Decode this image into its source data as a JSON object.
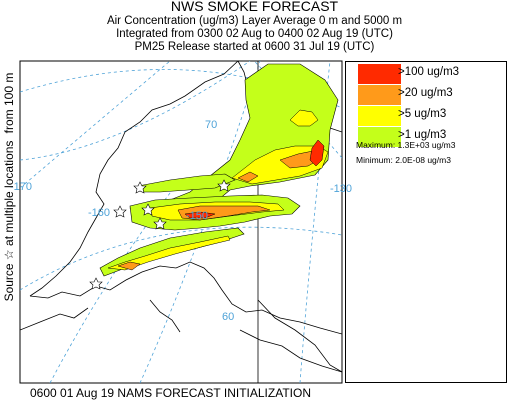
{
  "title": "NWS SMOKE FORECAST",
  "subtitle_lines": [
    "Air Concentration (ug/m3) Layer Average    0 m and  5000 m",
    "Integrated from 0300 02 Aug to 0400 02 Aug 19 (UTC)",
    "PM25 Release started at 0600 31 Jul 19 (UTC)"
  ],
  "side_label": "Source ☆ at multiple locations",
  "side_label_top": "from   100 m",
  "legend": [
    {
      "label": ">100 ug/m3",
      "color": "#ff2a00"
    },
    {
      "label": ">20 ug/m3",
      "color": "#ff9a1a"
    },
    {
      "label": ">5 ug/m3",
      "color": "#ffff00"
    },
    {
      "label": ">1 ug/m3",
      "color": "#c4ff1a"
    }
  ],
  "stats": {
    "maximum": "Maximum: 1.3E+03 ug/m3",
    "minimum": "Minimum: 2.0E-08 ug/m3"
  },
  "grid_labels": [
    "70",
    "-170",
    "-160",
    "-150",
    "-130",
    "60"
  ],
  "footer": "0600 01 Aug 19 NAMS FORECAST INITIALIZATION",
  "colors": {
    "graticule": "#4fa3d8",
    "coast": "#000000",
    "border": "#000000"
  }
}
